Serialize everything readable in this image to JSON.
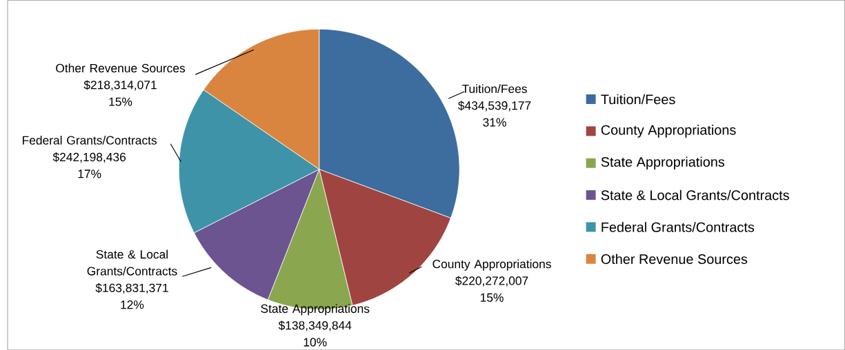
{
  "chart_data": {
    "type": "pie",
    "categories": [
      "Tuition/Fees",
      "County Appropriations",
      "State Appropriations",
      "State & Local Grants/Contracts",
      "Federal Grants/Contracts",
      "Other Revenue Sources"
    ],
    "values": [
      434539177,
      220272007,
      138349844,
      163831371,
      242198436,
      218314071
    ],
    "value_labels": [
      "$434,539,177",
      "$220,272,007",
      "$138,349,844",
      "$163,831,371",
      "$242,198,436",
      "$218,314,071"
    ],
    "annotations": [
      "31%",
      "15%",
      "10%",
      "12%",
      "17%",
      "15%"
    ],
    "colors": [
      "#3d6c9e",
      "#a04442",
      "#8aa64f",
      "#6c5490",
      "#3e93a8",
      "#d9853f"
    ],
    "legend": "right"
  }
}
